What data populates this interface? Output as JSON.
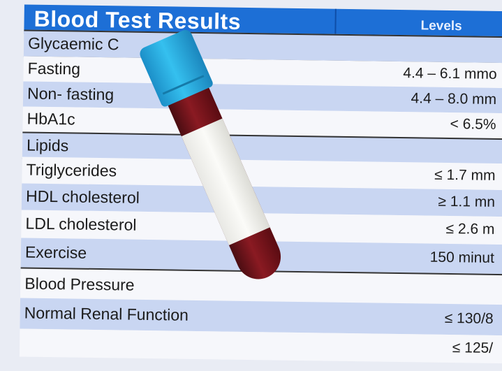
{
  "title": "Blood Test Results",
  "levels_header": "Levels",
  "rows": [
    {
      "label": "Glycaemic C",
      "value": "",
      "style": "blue",
      "section": true
    },
    {
      "label": "Fasting",
      "value": "4.4 – 6.1 mmo",
      "style": "white"
    },
    {
      "label": "Non- fasting",
      "value": "4.4 – 8.0 mm",
      "style": "blue"
    },
    {
      "label": "HbA1c",
      "value": "< 6.5%",
      "style": "white"
    },
    {
      "label": "Lipids",
      "value": "",
      "style": "blue",
      "section": true
    },
    {
      "label": "Triglycerides",
      "value": "≤ 1.7 mm",
      "style": "white"
    },
    {
      "label": "HDL cholesterol",
      "value": "≥ 1.1 mn",
      "style": "blue"
    },
    {
      "label": "LDL cholesterol",
      "value": "≤ 2.6 m",
      "style": "white"
    },
    {
      "label": "Exercise",
      "value": "150 minut",
      "style": "blue"
    },
    {
      "label": "Blood Pressure",
      "value": "",
      "style": "white",
      "section": true
    },
    {
      "label": "Normal Renal Function",
      "value": "≤ 130/8",
      "style": "blue"
    },
    {
      "label": "",
      "value": "≤ 125/",
      "style": "white"
    }
  ],
  "colors": {
    "header": "#1d6fd6",
    "row_blue": "#c9d6f2",
    "cap": "#35c0ef",
    "blood": "#8a1a22"
  }
}
